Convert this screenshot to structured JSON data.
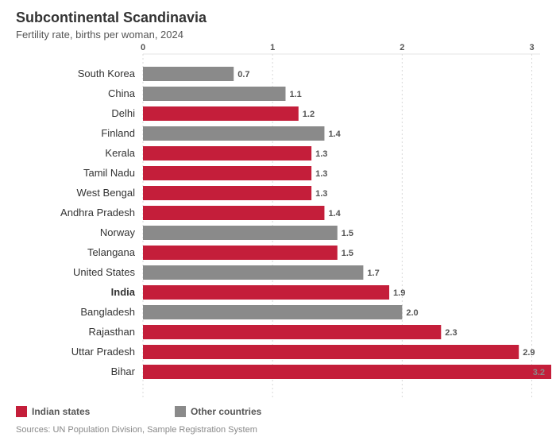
{
  "chart_data": {
    "type": "bar",
    "orientation": "horizontal",
    "title": "Subcontinental Scandinavia",
    "subtitle": "Fertility rate, births per woman, 2024",
    "categories": [
      "South Korea",
      "China",
      "Delhi",
      "Finland",
      "Kerala",
      "Tamil Nadu",
      "West Bengal",
      "Andhra Pradesh",
      "Norway",
      "Telangana",
      "United States",
      "India",
      "Bangladesh",
      "Rajasthan",
      "Uttar Pradesh",
      "Bihar"
    ],
    "values": [
      0.7,
      1.1,
      1.2,
      1.4,
      1.3,
      1.3,
      1.3,
      1.4,
      1.5,
      1.5,
      1.7,
      1.9,
      2.0,
      2.3,
      2.9,
      3.2
    ],
    "value_labels": [
      "0.7",
      "1.1",
      "1.2",
      "1.4",
      "1.3",
      "1.3",
      "1.3",
      "1.4",
      "1.5",
      "1.5",
      "1.7",
      "1.9",
      "2.0",
      "2.3",
      "2.9",
      "3.2"
    ],
    "groups": [
      "other",
      "other",
      "indian",
      "other",
      "indian",
      "indian",
      "indian",
      "indian",
      "other",
      "indian",
      "other",
      "indian",
      "other",
      "indian",
      "indian",
      "indian"
    ],
    "highlight": [
      "India"
    ],
    "xticks": [
      0,
      1,
      2,
      3
    ],
    "xlim": [
      0,
      3.15
    ],
    "grid": true,
    "legend_position": "bottom-left",
    "legend": [
      {
        "name": "Indian states",
        "color": "#c41e3a"
      },
      {
        "name": "Other countries",
        "color": "#8a8a8a"
      }
    ],
    "source": "Sources: UN Population Division, Sample Registration System"
  },
  "colors": {
    "indian": "#c41e3a",
    "other": "#8a8a8a"
  }
}
